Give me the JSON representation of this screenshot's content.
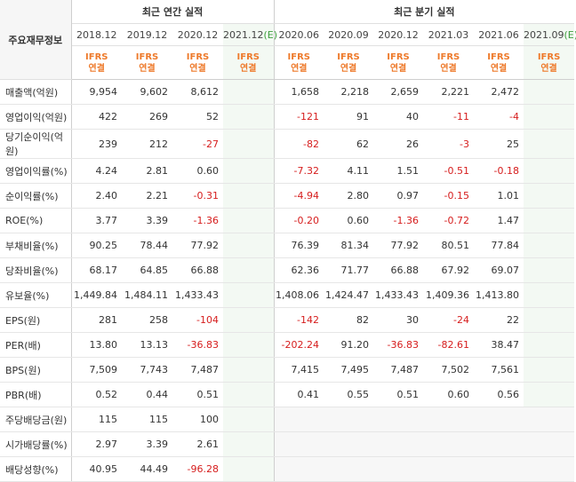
{
  "header": {
    "corner": "주요재무정보",
    "annual_group": "최근 연간 실적",
    "quarter_group": "최근 분기 실적",
    "estimate_suffix": "(E)",
    "ifrs_line1": "IFRS",
    "ifrs_line2": "연결"
  },
  "periods": [
    {
      "label": "2018.12",
      "estimate": false
    },
    {
      "label": "2019.12",
      "estimate": false
    },
    {
      "label": "2020.12",
      "estimate": false
    },
    {
      "label": "2021.12",
      "estimate": true
    },
    {
      "label": "2020.06",
      "estimate": false
    },
    {
      "label": "2020.09",
      "estimate": false
    },
    {
      "label": "2020.12",
      "estimate": false
    },
    {
      "label": "2021.03",
      "estimate": false
    },
    {
      "label": "2021.06",
      "estimate": false
    },
    {
      "label": "2021.09",
      "estimate": true
    }
  ],
  "rows": [
    {
      "label": "매출액(억원)",
      "values": [
        "9,954",
        "9,602",
        "8,612",
        "",
        "1,658",
        "2,218",
        "2,659",
        "2,221",
        "2,472",
        ""
      ]
    },
    {
      "label": "영업이익(억원)",
      "values": [
        "422",
        "269",
        "52",
        "",
        "-121",
        "91",
        "40",
        "-11",
        "-4",
        ""
      ]
    },
    {
      "label": "당기순이익(억원)",
      "values": [
        "239",
        "212",
        "-27",
        "",
        "-82",
        "62",
        "26",
        "-3",
        "25",
        ""
      ]
    },
    {
      "label": "영업이익률(%)",
      "values": [
        "4.24",
        "2.81",
        "0.60",
        "",
        "-7.32",
        "4.11",
        "1.51",
        "-0.51",
        "-0.18",
        ""
      ]
    },
    {
      "label": "순이익률(%)",
      "values": [
        "2.40",
        "2.21",
        "-0.31",
        "",
        "-4.94",
        "2.80",
        "0.97",
        "-0.15",
        "1.01",
        ""
      ]
    },
    {
      "label": "ROE(%)",
      "values": [
        "3.77",
        "3.39",
        "-1.36",
        "",
        "-0.20",
        "0.60",
        "-1.36",
        "-0.72",
        "1.47",
        ""
      ]
    },
    {
      "label": "부채비율(%)",
      "values": [
        "90.25",
        "78.44",
        "77.92",
        "",
        "76.39",
        "81.34",
        "77.92",
        "80.51",
        "77.84",
        ""
      ]
    },
    {
      "label": "당좌비율(%)",
      "values": [
        "68.17",
        "64.85",
        "66.88",
        "",
        "62.36",
        "71.77",
        "66.88",
        "67.92",
        "69.07",
        ""
      ]
    },
    {
      "label": "유보율(%)",
      "values": [
        "1,449.84",
        "1,484.11",
        "1,433.43",
        "",
        "1,408.06",
        "1,424.47",
        "1,433.43",
        "1,409.36",
        "1,413.80",
        ""
      ]
    },
    {
      "label": "EPS(원)",
      "values": [
        "281",
        "258",
        "-104",
        "",
        "-142",
        "82",
        "30",
        "-24",
        "22",
        ""
      ]
    },
    {
      "label": "PER(배)",
      "values": [
        "13.80",
        "13.13",
        "-36.83",
        "",
        "-202.24",
        "91.20",
        "-36.83",
        "-82.61",
        "38.47",
        ""
      ]
    },
    {
      "label": "BPS(원)",
      "values": [
        "7,509",
        "7,743",
        "7,487",
        "",
        "7,415",
        "7,495",
        "7,487",
        "7,502",
        "7,561",
        ""
      ]
    },
    {
      "label": "PBR(배)",
      "values": [
        "0.52",
        "0.44",
        "0.51",
        "",
        "0.41",
        "0.55",
        "0.51",
        "0.60",
        "0.56",
        ""
      ]
    },
    {
      "label": "주당배당금(원)",
      "values": [
        "115",
        "115",
        "100",
        "",
        "",
        "",
        "",
        "",
        "",
        ""
      ]
    },
    {
      "label": "시가배당률(%)",
      "values": [
        "2.97",
        "3.39",
        "2.61",
        "",
        "",
        "",
        "",
        "",
        "",
        ""
      ]
    },
    {
      "label": "배당성향(%)",
      "values": [
        "40.95",
        "44.49",
        "-96.28",
        "",
        "",
        "",
        "",
        "",
        "",
        ""
      ]
    }
  ]
}
